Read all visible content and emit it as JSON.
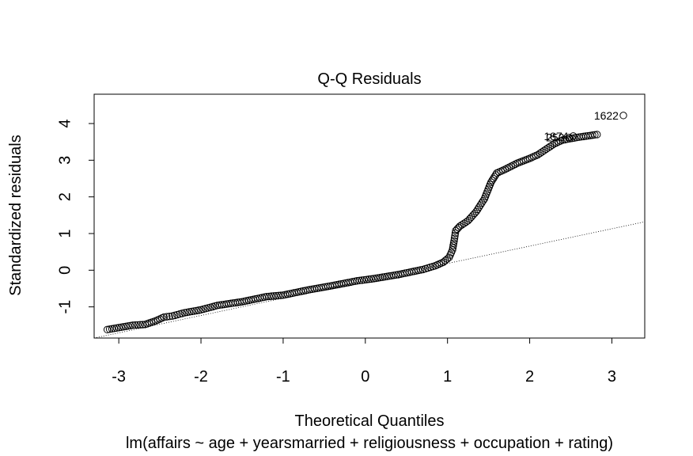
{
  "chart_data": {
    "type": "scatter",
    "title": "Q-Q Residuals",
    "xlabel": "Theoretical Quantiles",
    "ylabel": "Standardized residuals",
    "subtitle": "lm(affairs ~ age + yearsmarried + religiousness + occupation + rating)",
    "xlim": [
      -3.3,
      3.4
    ],
    "ylim": [
      -1.85,
      4.8
    ],
    "xticks": [
      -3,
      -2,
      -1,
      0,
      1,
      2,
      3
    ],
    "yticks": [
      -1,
      0,
      1,
      2,
      3,
      4
    ],
    "reference_line": {
      "style": "dotted",
      "points": [
        [
          -3.3,
          -1.85
        ],
        [
          3.4,
          1.32
        ]
      ]
    },
    "labeled_points": [
      {
        "label": "1622",
        "x": 3.14,
        "y": 4.22
      },
      {
        "label": "1874",
        "x": 2.53,
        "y": 3.66
      },
      {
        "label": "253",
        "x": 2.48,
        "y": 3.62
      }
    ],
    "series": [
      {
        "curve_points": [
          [
            -3.14,
            -1.62
          ],
          [
            -2.83,
            -1.5
          ],
          [
            -2.68,
            -1.48
          ],
          [
            -2.55,
            -1.38
          ],
          [
            -2.45,
            -1.28
          ],
          [
            -2.35,
            -1.25
          ],
          [
            -2.2,
            -1.16
          ],
          [
            -2.0,
            -1.08
          ],
          [
            -1.8,
            -0.96
          ],
          [
            -1.5,
            -0.86
          ],
          [
            -1.2,
            -0.72
          ],
          [
            -1.0,
            -0.68
          ],
          [
            -0.7,
            -0.54
          ],
          [
            -0.4,
            -0.42
          ],
          [
            -0.1,
            -0.29
          ],
          [
            0.1,
            -0.23
          ],
          [
            0.4,
            -0.12
          ],
          [
            0.7,
            0.02
          ],
          [
            0.85,
            0.12
          ],
          [
            0.95,
            0.22
          ],
          [
            1.02,
            0.35
          ],
          [
            1.06,
            0.55
          ],
          [
            1.08,
            0.8
          ],
          [
            1.1,
            1.08
          ],
          [
            1.15,
            1.2
          ],
          [
            1.25,
            1.35
          ],
          [
            1.35,
            1.6
          ],
          [
            1.45,
            1.95
          ],
          [
            1.53,
            2.4
          ],
          [
            1.6,
            2.65
          ],
          [
            1.7,
            2.75
          ],
          [
            1.85,
            2.92
          ],
          [
            2.0,
            3.05
          ],
          [
            2.1,
            3.15
          ],
          [
            2.2,
            3.3
          ],
          [
            2.3,
            3.45
          ],
          [
            2.4,
            3.55
          ],
          [
            2.6,
            3.63
          ],
          [
            2.82,
            3.7
          ]
        ]
      }
    ]
  }
}
